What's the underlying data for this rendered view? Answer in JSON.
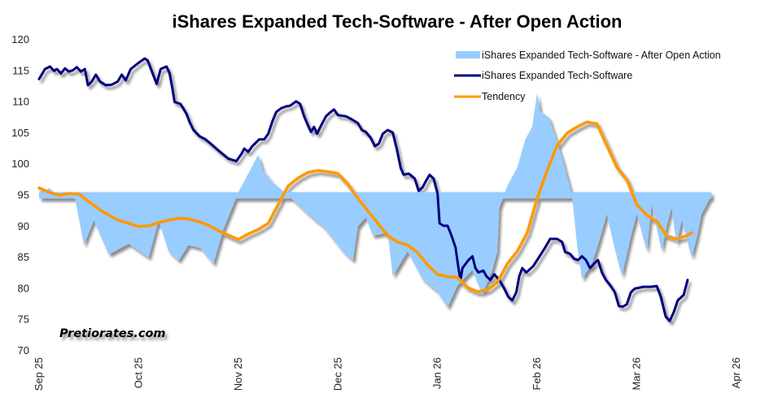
{
  "chart_data": {
    "type": "line",
    "title": "iShares Expanded Tech-Software - After Open Action",
    "xlabel": "",
    "ylabel": "",
    "ylim": [
      70,
      120
    ],
    "yticks": [
      70,
      75,
      80,
      85,
      90,
      95,
      100,
      105,
      110,
      115,
      120
    ],
    "x_unit": "months since Sep 1 2025",
    "xlim": [
      0,
      7
    ],
    "xtick_labels": [
      "Sep 25",
      "Oct 25",
      "Nov 25",
      "Dec 25",
      "Jan 26",
      "Feb 26",
      "Mar 26",
      "Apr 26"
    ],
    "grid": false,
    "legend_position": "top-right",
    "watermark": "Pretiorates.com",
    "baseline": 95,
    "series": [
      {
        "name": "iShares Expanded Tech-Software - After Open Action",
        "kind": "area",
        "color": "#99ccff",
        "x": [
          0,
          0.1,
          0.2,
          0.35,
          0.45,
          0.55,
          0.7,
          0.9,
          1.1,
          1.2,
          1.3,
          1.4,
          1.5,
          1.62,
          1.75,
          1.85,
          2.0,
          2.1,
          2.2,
          2.25,
          2.35,
          2.5,
          2.6,
          2.7,
          2.85,
          2.95,
          3.05,
          3.15,
          3.2,
          3.28,
          3.35,
          3.5,
          3.55,
          3.7,
          3.85,
          4.0,
          4.1,
          4.2,
          4.35,
          4.45,
          4.5,
          4.55,
          4.6,
          4.62,
          4.7,
          4.8,
          4.88,
          4.95,
          5.0,
          5.03,
          5.12,
          5.25,
          5.35,
          5.4,
          5.45,
          5.55,
          5.62,
          5.7,
          5.77,
          5.85,
          5.9,
          5.95,
          6.0,
          6.1,
          6.15,
          6.25,
          6.3,
          6.35,
          6.4,
          6.45,
          6.5,
          6.55,
          6.6,
          6.65,
          6.7,
          6.75
        ],
        "values": [
          94.5,
          96.2,
          94.8,
          95.5,
          87,
          91,
          85.5,
          87.2,
          85,
          91,
          86,
          84.5,
          87,
          86.5,
          84,
          89.5,
          95.5,
          98.5,
          101.5,
          99,
          97,
          95,
          93.5,
          92,
          90,
          88,
          86,
          84.5,
          90,
          91.5,
          88.5,
          89,
          82,
          86,
          81.5,
          79.5,
          77,
          80.5,
          83,
          79,
          81,
          83,
          86,
          93,
          96.5,
          99.5,
          104,
          106,
          111.5,
          108.5,
          107.5,
          101,
          95,
          87,
          81.5,
          84,
          87.5,
          92,
          87,
          82,
          85.5,
          89,
          92,
          86,
          93.5,
          86,
          90,
          93,
          87,
          91,
          88,
          85,
          88,
          92,
          93.5,
          95
        ]
      },
      {
        "name": "iShares Expanded Tech-Software",
        "kind": "line",
        "color": "#000080",
        "x": [
          0,
          0.06,
          0.11,
          0.15,
          0.18,
          0.22,
          0.26,
          0.3,
          0.34,
          0.38,
          0.42,
          0.46,
          0.49,
          0.53,
          0.57,
          0.61,
          0.67,
          0.73,
          0.79,
          0.83,
          0.87,
          0.92,
          1.0,
          1.06,
          1.09,
          1.14,
          1.18,
          1.22,
          1.28,
          1.31,
          1.34,
          1.36,
          1.42,
          1.48,
          1.51,
          1.55,
          1.61,
          1.67,
          1.73,
          1.8,
          1.9,
          1.98,
          2.03,
          2.06,
          2.1,
          2.14,
          2.21,
          2.26,
          2.3,
          2.34,
          2.38,
          2.43,
          2.48,
          2.52,
          2.58,
          2.62,
          2.66,
          2.7,
          2.73,
          2.76,
          2.79,
          2.83,
          2.88,
          2.92,
          2.96,
          3.0,
          3.08,
          3.14,
          3.2,
          3.24,
          3.28,
          3.33,
          3.37,
          3.41,
          3.45,
          3.5,
          3.55,
          3.59,
          3.63,
          3.66,
          3.71,
          3.77,
          3.81,
          3.85,
          3.88,
          3.92,
          3.96,
          4.0,
          4.02,
          4.06,
          4.1,
          4.14,
          4.18,
          4.21,
          4.23,
          4.25,
          4.31,
          4.35,
          4.38,
          4.41,
          4.46,
          4.49,
          4.53,
          4.57,
          4.62,
          4.67,
          4.71,
          4.75,
          4.79,
          4.82,
          4.85,
          4.89,
          4.96,
          5.02,
          5.08,
          5.13,
          5.2,
          5.25,
          5.28,
          5.33,
          5.37,
          5.41,
          5.45,
          5.49,
          5.53,
          5.57,
          5.61,
          5.65,
          5.69,
          5.74,
          5.78,
          5.82,
          5.86,
          5.9,
          5.94,
          5.98,
          6.07,
          6.14,
          6.2,
          6.24,
          6.29,
          6.33,
          6.37,
          6.41,
          6.47,
          6.51
        ],
        "values": [
          113.7,
          115.3,
          115.7,
          115,
          115.3,
          114.6,
          115.4,
          114.9,
          115.1,
          115.6,
          114.9,
          115.3,
          112.7,
          113.3,
          114.4,
          113.3,
          112.7,
          112.8,
          113.3,
          114.4,
          113.5,
          115.3,
          116.3,
          117,
          116.7,
          114.6,
          112.9,
          115.3,
          115.7,
          114.6,
          112,
          110,
          109.7,
          108.1,
          106.8,
          105.5,
          104.5,
          104,
          103.2,
          102.2,
          100.9,
          100.5,
          101.6,
          102.5,
          102,
          102.9,
          104,
          104,
          104.9,
          106.8,
          108.4,
          109,
          109.3,
          109.4,
          110.1,
          109.7,
          107.7,
          106.2,
          105.2,
          106,
          104.9,
          106.2,
          107.7,
          108.3,
          108.8,
          107.9,
          107.7,
          107.2,
          106.6,
          105.5,
          105.2,
          104.2,
          102.9,
          103.3,
          104.9,
          105.5,
          105.1,
          102.5,
          99.4,
          98.3,
          98.5,
          97.7,
          95.7,
          96.3,
          97.2,
          98.3,
          97.7,
          95.3,
          90.5,
          90.1,
          90.1,
          88.5,
          86.6,
          83.3,
          81.4,
          83.3,
          84.6,
          85.2,
          83.3,
          82.6,
          82.9,
          82,
          81.4,
          82.3,
          81.4,
          80,
          78.7,
          78.1,
          79.4,
          82,
          83.3,
          82.6,
          83.6,
          85.1,
          86.6,
          88,
          88,
          87.5,
          85.9,
          85.6,
          84.8,
          84.6,
          85.2,
          84.6,
          83.3,
          84,
          84.6,
          82.6,
          81.4,
          80.4,
          79.4,
          77.2,
          77.1,
          77.5,
          79.4,
          80,
          80.3,
          80.3,
          80.4,
          78.7,
          75.5,
          74.8,
          76.2,
          78.1,
          79,
          81.4
        ]
      },
      {
        "name": "Tendency",
        "kind": "line",
        "color": "#ff9900",
        "x": [
          0,
          0.1,
          0.2,
          0.3,
          0.4,
          0.5,
          0.6,
          0.7,
          0.8,
          0.9,
          1.0,
          1.1,
          1.2,
          1.3,
          1.4,
          1.5,
          1.6,
          1.7,
          1.8,
          1.9,
          2.0,
          2.1,
          2.2,
          2.3,
          2.4,
          2.5,
          2.6,
          2.7,
          2.8,
          2.9,
          3.0,
          3.1,
          3.2,
          3.3,
          3.4,
          3.5,
          3.6,
          3.7,
          3.8,
          3.9,
          4.0,
          4.1,
          4.2,
          4.3,
          4.4,
          4.5,
          4.6,
          4.7,
          4.8,
          4.9,
          5.0,
          5.1,
          5.2,
          5.3,
          5.4,
          5.5,
          5.6,
          5.7,
          5.8,
          5.9,
          6.0,
          6.1,
          6.2,
          6.3,
          6.4,
          6.5,
          6.55
        ],
        "values": [
          96.2,
          95.5,
          95,
          95.3,
          95.2,
          94,
          92.8,
          91.8,
          91,
          90.5,
          90,
          90.1,
          90.6,
          91,
          91.3,
          91.2,
          90.8,
          90.2,
          89.3,
          88.6,
          87.9,
          88.8,
          89.5,
          90.5,
          93.5,
          96.5,
          97.8,
          98.7,
          99,
          98.8,
          98.5,
          96.8,
          94.5,
          92.5,
          90.5,
          88.5,
          87.5,
          87,
          85.8,
          83.8,
          82.3,
          81.9,
          81.8,
          80.2,
          79.5,
          79.8,
          81,
          84,
          86,
          89,
          94.5,
          99,
          103,
          105,
          106,
          106.8,
          106.5,
          103,
          99.5,
          97.5,
          93.5,
          91.8,
          90.8,
          88.5,
          88,
          88.5,
          89
        ]
      }
    ]
  }
}
